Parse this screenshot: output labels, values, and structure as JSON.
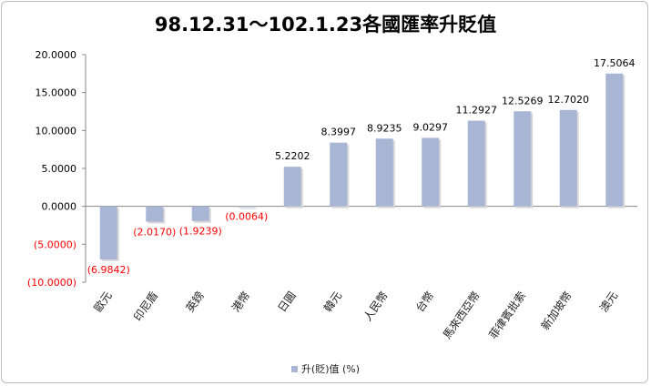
{
  "chart_data": {
    "type": "bar",
    "title": "98.12.31～102.1.23各國匯率升貶值",
    "categories": [
      "歐元",
      "印尼盾",
      "英鎊",
      "港幣",
      "日圓",
      "韓元",
      "人民幣",
      "台幣",
      "馬來西亞幣",
      "菲律賓批索",
      "新加坡幣",
      "澳元"
    ],
    "values": [
      -6.9842,
      -2.017,
      -1.9239,
      -0.0064,
      5.2202,
      8.3997,
      8.9235,
      9.0297,
      11.2927,
      12.5269,
      12.702,
      17.5064
    ],
    "data_labels": [
      "(6.9842)",
      "(2.0170)",
      "(1.9239)",
      "(0.0064)",
      "5.2202",
      "8.3997",
      "8.9235",
      "9.0297",
      "11.2927",
      "12.5269",
      "12.7020",
      "17.5064"
    ],
    "y_tick_labels": [
      "20.0000",
      "15.0000",
      "10.0000",
      "5.0000",
      "0.0000",
      "(5.0000)",
      "(10.0000)"
    ],
    "y_tick_values": [
      20,
      15,
      10,
      5,
      0,
      -5,
      -10
    ],
    "ylim": [
      -10,
      20
    ],
    "legend": {
      "label": "升(貶)值 (%)",
      "position": "bottom"
    },
    "grid": false,
    "colors": {
      "bar": "#a8b5d4",
      "negative_text": "#ff0000",
      "positive_text": "#000000"
    }
  }
}
